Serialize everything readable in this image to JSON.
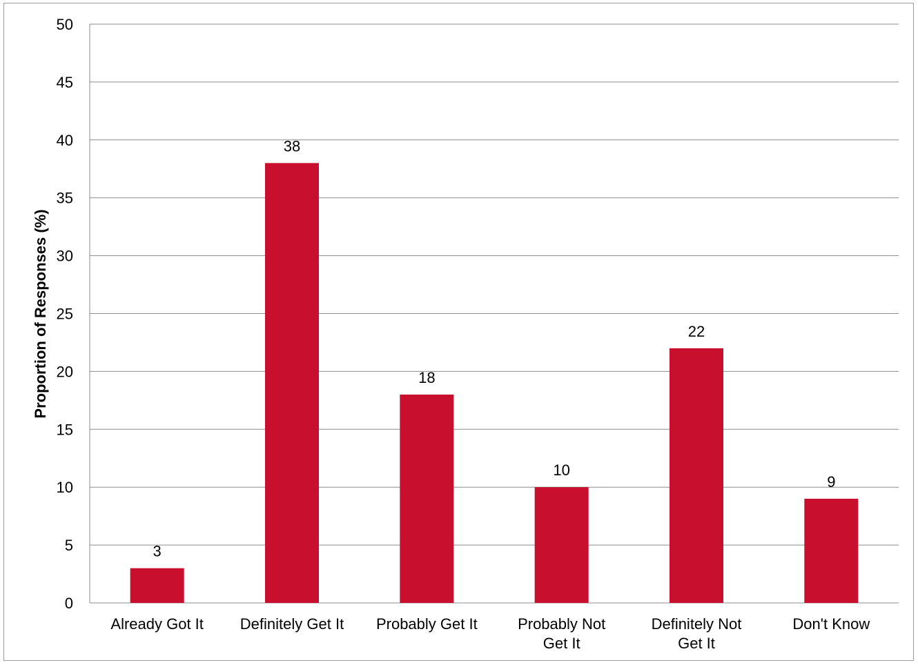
{
  "chart_data": {
    "type": "bar",
    "title": "",
    "xlabel": "",
    "ylabel": "Proportion of Responses (%)",
    "categories": [
      [
        "Already Got It"
      ],
      [
        "Definitely Get It"
      ],
      [
        "Probably Get It"
      ],
      [
        "Probably Not",
        "Get It"
      ],
      [
        "Definitely Not",
        "Get It"
      ],
      [
        "Don't Know"
      ]
    ],
    "values": [
      3,
      38,
      18,
      10,
      22,
      9
    ],
    "data_labels": [
      "3",
      "38",
      "18",
      "10",
      "22",
      "9"
    ],
    "ylim": [
      0,
      50
    ],
    "yticks": [
      0,
      5,
      10,
      15,
      20,
      25,
      30,
      35,
      40,
      45,
      50
    ],
    "ytick_labels": [
      "0",
      "5",
      "10",
      "15",
      "20",
      "25",
      "30",
      "35",
      "40",
      "45",
      "50"
    ],
    "grid": true,
    "legend": "none",
    "bar_color": "#c8102e",
    "grid_color": "#8c8c8c"
  }
}
